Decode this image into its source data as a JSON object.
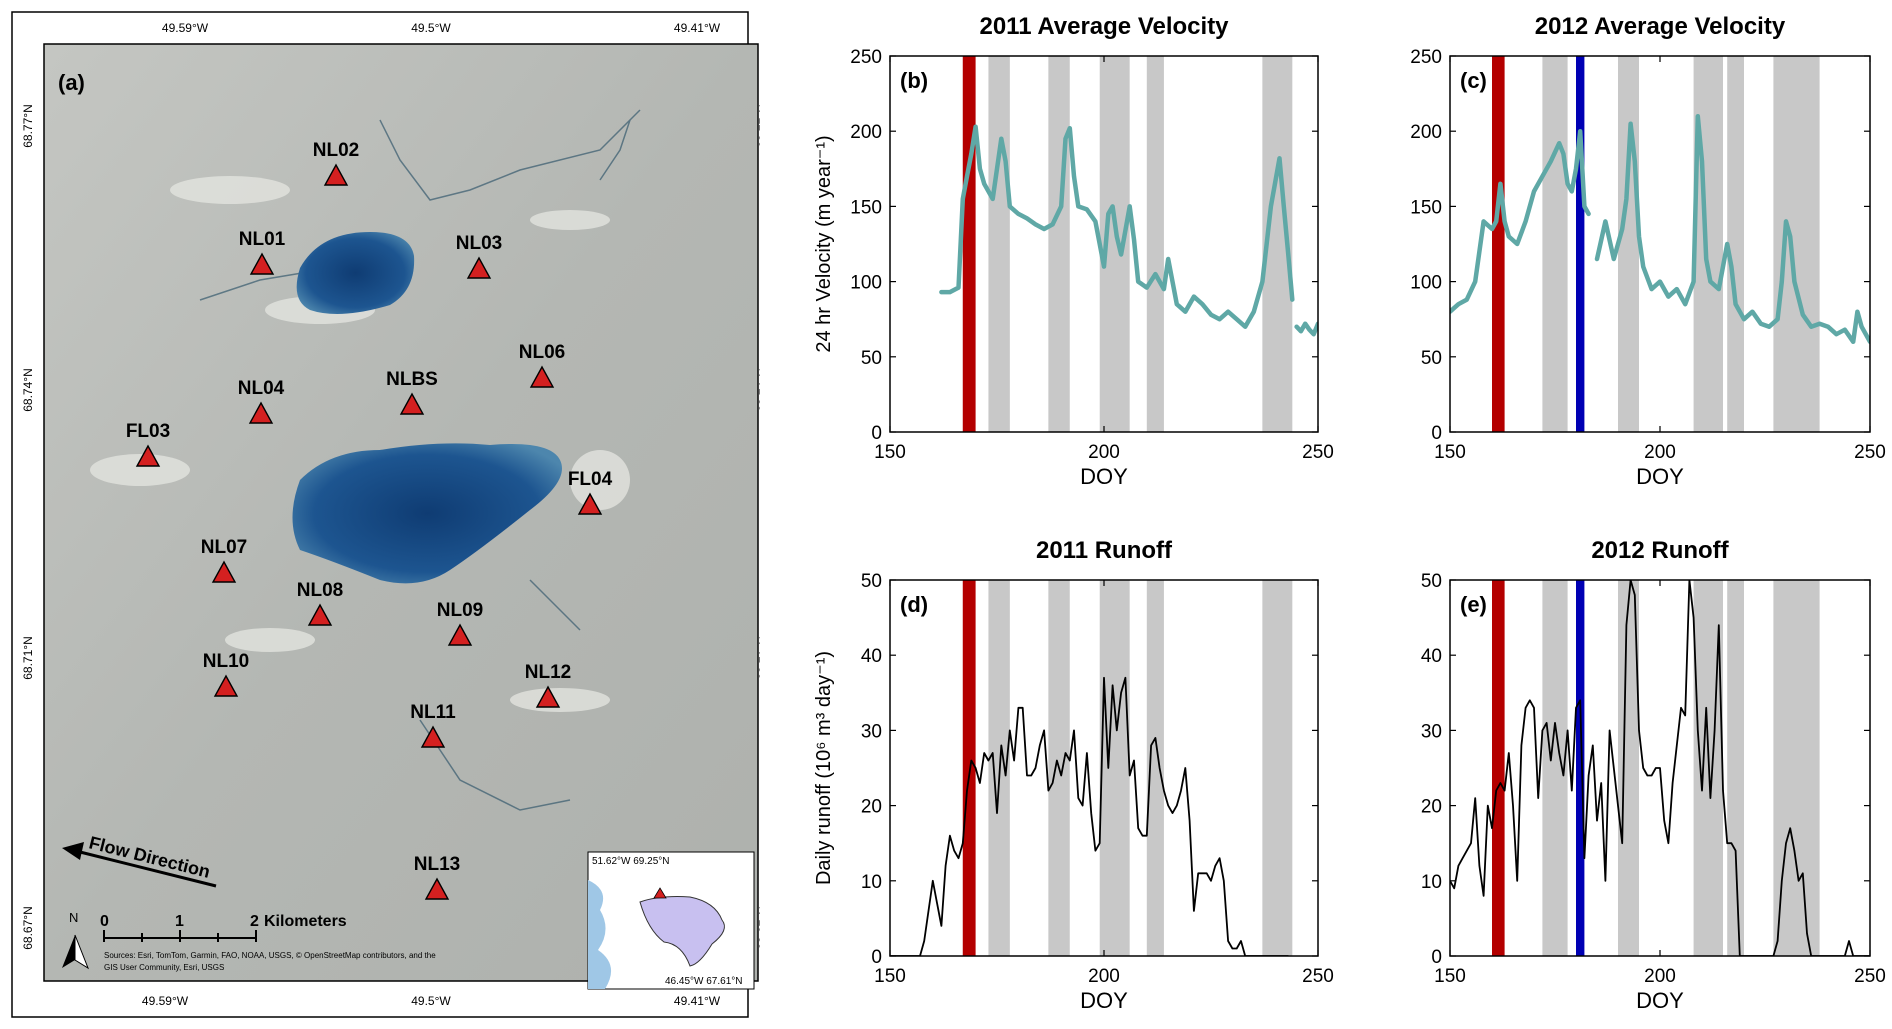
{
  "colors": {
    "teal": "#5fa8a6",
    "red_band": "#b40000",
    "blue_band": "#0000b4",
    "gray_band": "#c8c8c8",
    "triangle_fill": "#d42020",
    "lake_blue": "#1d4f86",
    "ice": "#b9bcb8"
  },
  "map": {
    "panel_label": "(a)",
    "top_ticks": [
      "49.59°W",
      "49.5°W",
      "49.41°W"
    ],
    "bottom_ticks": [
      "49.59°W",
      "49.5°W",
      "49.41°W"
    ],
    "left_ticks": [
      "68.77°N",
      "68.74°N",
      "68.71°N",
      "68.67°N"
    ],
    "right_ticks": [
      "68.77°N",
      "68.74°N",
      "68.71°N",
      "68.67°N"
    ],
    "stations": [
      "NL02",
      "NL01",
      "NL03",
      "NL06",
      "NL04",
      "NLBS",
      "FL03",
      "FL04",
      "NL07",
      "NL08",
      "NL09",
      "NL10",
      "NL12",
      "NL11",
      "NL13"
    ],
    "flow_label": "Flow Direction",
    "north_label": "N",
    "scale_ticks": [
      "0",
      "1",
      "2"
    ],
    "scale_unit": "Kilometers",
    "sources_line1": "Sources: Esri, TomTom, Garmin, FAO, NOAA, USGS, © OpenStreetMap contributors, and the",
    "sources_line2": "GIS User Community, Esri, USGS",
    "inset_topleft": "51.62°W 69.25°N",
    "inset_bottomright": "46.45°W 67.61°N"
  },
  "chart_data": [
    {
      "panel": "(b)",
      "type": "line",
      "title": "2011 Average Velocity",
      "xlabel": "DOY",
      "ylabel": "24 hr Velocity (m year⁻¹)",
      "xlim": [
        150,
        250
      ],
      "ylim": [
        0,
        250
      ],
      "xticks": [
        150,
        200,
        250
      ],
      "yticks": [
        0,
        50,
        100,
        150,
        200,
        250
      ],
      "red_bands": [
        [
          167,
          170
        ]
      ],
      "blue_bands": [],
      "gray_bands": [
        [
          173,
          178
        ],
        [
          187,
          192
        ],
        [
          199,
          206
        ],
        [
          210,
          214
        ],
        [
          237,
          244
        ]
      ],
      "series": [
        {
          "name": "velocity",
          "x": [
            162,
            164,
            166,
            167,
            168,
            169,
            170,
            171,
            172,
            174,
            176,
            177,
            178,
            180,
            182,
            184,
            186,
            188,
            190,
            191,
            192,
            193,
            194,
            196,
            198,
            200,
            201,
            202,
            203,
            204,
            206,
            207,
            208,
            210,
            212,
            214,
            215,
            217,
            219,
            221,
            223,
            225,
            227,
            229,
            231,
            233,
            235,
            237,
            239,
            241,
            242,
            243,
            244
          ],
          "y": [
            93,
            93,
            96,
            155,
            170,
            185,
            203,
            175,
            165,
            155,
            195,
            180,
            150,
            145,
            142,
            138,
            135,
            138,
            150,
            195,
            202,
            170,
            150,
            148,
            140,
            110,
            145,
            150,
            130,
            118,
            150,
            128,
            100,
            96,
            105,
            95,
            115,
            85,
            80,
            90,
            85,
            78,
            75,
            80,
            75,
            70,
            80,
            100,
            150,
            182,
            150,
            120,
            88
          ]
        },
        {
          "name": "velocity-tail",
          "x": [
            245,
            246,
            247,
            248,
            249,
            250
          ],
          "y": [
            70,
            67,
            72,
            68,
            65,
            72
          ]
        }
      ]
    },
    {
      "panel": "(c)",
      "type": "line",
      "title": "2012 Average Velocity",
      "xlabel": "DOY",
      "ylabel": "",
      "xlim": [
        150,
        250
      ],
      "ylim": [
        0,
        250
      ],
      "xticks": [
        150,
        200,
        250
      ],
      "yticks": [
        0,
        50,
        100,
        150,
        200,
        250
      ],
      "red_bands": [
        [
          160,
          163
        ]
      ],
      "blue_bands": [
        [
          180,
          182
        ]
      ],
      "gray_bands": [
        [
          172,
          178
        ],
        [
          190,
          195
        ],
        [
          208,
          215
        ],
        [
          216,
          220
        ],
        [
          227,
          238
        ]
      ],
      "series": [
        {
          "name": "velocity-a",
          "x": [
            150,
            152,
            154,
            156,
            158,
            160,
            161,
            162,
            163,
            164,
            166,
            168,
            170,
            172,
            174,
            176,
            177,
            178,
            179,
            180,
            181,
            182,
            183
          ],
          "y": [
            80,
            85,
            88,
            100,
            140,
            135,
            140,
            165,
            140,
            130,
            125,
            140,
            160,
            170,
            180,
            192,
            185,
            165,
            160,
            175,
            200,
            150,
            145
          ]
        },
        {
          "name": "velocity-b",
          "x": [
            185,
            187,
            189,
            191,
            192,
            193,
            194,
            195,
            196,
            198,
            200,
            202,
            204,
            206,
            208,
            209,
            210,
            211,
            212,
            214,
            216,
            217,
            218,
            220,
            222,
            224,
            226,
            228,
            229,
            230,
            231,
            232,
            234,
            236,
            238,
            240,
            242,
            244,
            246,
            247,
            248,
            250
          ],
          "y": [
            115,
            140,
            115,
            135,
            155,
            205,
            180,
            130,
            110,
            95,
            100,
            90,
            95,
            85,
            100,
            210,
            180,
            115,
            100,
            95,
            125,
            110,
            85,
            75,
            80,
            72,
            70,
            75,
            100,
            140,
            130,
            100,
            78,
            70,
            72,
            70,
            65,
            68,
            60,
            80,
            70,
            60
          ]
        }
      ]
    },
    {
      "panel": "(d)",
      "type": "line",
      "title": "2011 Runoff",
      "xlabel": "DOY",
      "ylabel": "Daily runoff (10⁶ m³ day⁻¹)",
      "xlim": [
        150,
        250
      ],
      "ylim": [
        0,
        50
      ],
      "xticks": [
        150,
        200,
        250
      ],
      "yticks": [
        0,
        10,
        20,
        30,
        40,
        50
      ],
      "red_bands": [
        [
          167,
          170
        ]
      ],
      "blue_bands": [],
      "gray_bands": [
        [
          173,
          178
        ],
        [
          187,
          192
        ],
        [
          199,
          206
        ],
        [
          210,
          214
        ],
        [
          237,
          244
        ]
      ],
      "series": [
        {
          "name": "runoff",
          "x": [
            150,
            157,
            158,
            160,
            161,
            162,
            163,
            164,
            165,
            166,
            167,
            168,
            169,
            170,
            171,
            172,
            173,
            174,
            175,
            176,
            177,
            178,
            179,
            180,
            181,
            182,
            183,
            184,
            185,
            186,
            187,
            188,
            189,
            190,
            191,
            192,
            193,
            194,
            195,
            196,
            197,
            198,
            199,
            200,
            201,
            202,
            203,
            204,
            205,
            206,
            207,
            208,
            209,
            210,
            211,
            212,
            213,
            214,
            215,
            216,
            217,
            218,
            219,
            220,
            221,
            222,
            223,
            224,
            225,
            226,
            227,
            228,
            229,
            230,
            231,
            232,
            233,
            234,
            235,
            236,
            237,
            238,
            239,
            240,
            241,
            242,
            243
          ],
          "y": [
            0,
            0,
            2,
            10,
            7,
            4,
            12,
            16,
            14,
            13,
            15,
            22,
            26,
            25,
            23,
            27,
            26,
            27,
            19,
            28,
            24,
            30,
            26,
            33,
            33,
            24,
            24,
            25,
            28,
            30,
            22,
            23,
            26,
            24,
            27,
            26,
            30,
            21,
            20,
            27,
            19,
            14,
            15,
            37,
            25,
            36,
            30,
            35,
            37,
            24,
            26,
            17,
            16,
            16,
            28,
            29,
            25,
            22,
            20,
            19,
            20,
            22,
            25,
            18,
            6,
            11,
            11,
            11,
            10,
            12,
            13,
            10,
            2,
            1,
            1,
            2,
            0,
            0,
            0,
            0,
            0,
            0,
            0,
            0,
            0,
            0,
            0
          ]
        }
      ]
    },
    {
      "panel": "(e)",
      "type": "line",
      "title": "2012 Runoff",
      "xlabel": "DOY",
      "ylabel": "",
      "xlim": [
        150,
        250
      ],
      "ylim": [
        0,
        50
      ],
      "xticks": [
        150,
        200,
        250
      ],
      "yticks": [
        0,
        10,
        20,
        30,
        40,
        50
      ],
      "red_bands": [
        [
          160,
          163
        ]
      ],
      "blue_bands": [
        [
          180,
          182
        ]
      ],
      "gray_bands": [
        [
          172,
          178
        ],
        [
          190,
          195
        ],
        [
          208,
          215
        ],
        [
          216,
          220
        ],
        [
          227,
          238
        ]
      ],
      "series": [
        {
          "name": "runoff",
          "x": [
            150,
            151,
            152,
            153,
            154,
            155,
            156,
            157,
            158,
            159,
            160,
            161,
            162,
            163,
            164,
            165,
            166,
            167,
            168,
            169,
            170,
            171,
            172,
            173,
            174,
            175,
            176,
            177,
            178,
            179,
            180,
            181,
            182,
            183,
            184,
            185,
            186,
            187,
            188,
            189,
            190,
            191,
            192,
            193,
            194,
            195,
            196,
            197,
            198,
            199,
            200,
            201,
            202,
            203,
            204,
            205,
            206,
            207,
            208,
            209,
            210,
            211,
            212,
            213,
            214,
            215,
            216,
            217,
            218,
            219,
            220,
            221,
            222,
            223,
            224,
            225,
            226,
            227,
            228,
            229,
            230,
            231,
            232,
            233,
            234,
            235,
            236,
            237,
            238,
            239,
            240,
            241,
            242,
            243,
            244,
            245,
            246,
            247,
            248,
            250
          ],
          "y": [
            10,
            9,
            12,
            13,
            14,
            15,
            21,
            12,
            8,
            20,
            17,
            22,
            23,
            22,
            27,
            20,
            10,
            28,
            33,
            34,
            33,
            21,
            30,
            31,
            26,
            31,
            27,
            24,
            30,
            22,
            33,
            34,
            13,
            24,
            28,
            18,
            23,
            10,
            30,
            25,
            20,
            15,
            44,
            50,
            48,
            30,
            25,
            24,
            24,
            25,
            25,
            18,
            15,
            23,
            28,
            33,
            32,
            50,
            45,
            30,
            22,
            33,
            21,
            30,
            44,
            22,
            15,
            15,
            14,
            0,
            0,
            0,
            0,
            0,
            0,
            0,
            0,
            0,
            2,
            10,
            15,
            17,
            14,
            10,
            11,
            3,
            0,
            0,
            0,
            0,
            0,
            0,
            0,
            0,
            0,
            2,
            0,
            0,
            0,
            0
          ]
        }
      ]
    }
  ]
}
